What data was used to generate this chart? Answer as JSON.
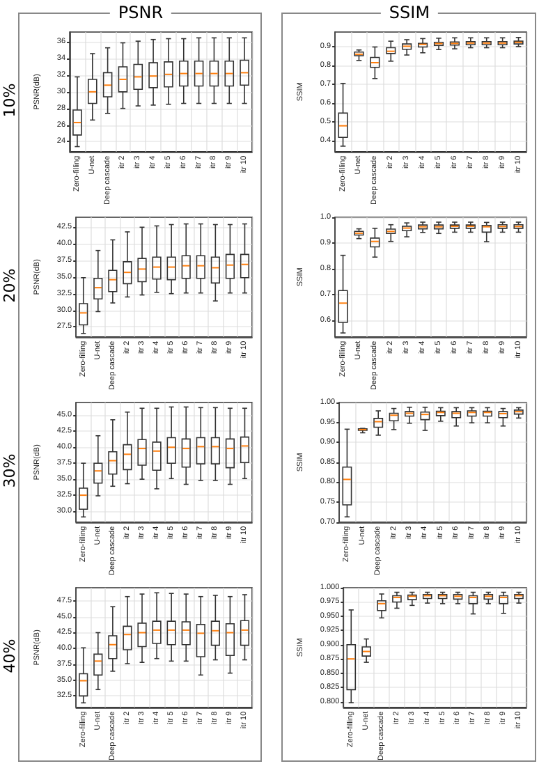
{
  "chart_data": [
    {
      "type": "box",
      "title": "PSNR",
      "annotations": [
        "10%"
      ],
      "ylabel": "PSNR(dB)",
      "categories": [
        "Zero-filling",
        "U-net",
        "Deep cascade",
        "itr 2",
        "itr 3",
        "itr 4",
        "itr 5",
        "itr 6",
        "itr 7",
        "itr 8",
        "itr 9",
        "itr 10"
      ],
      "ylim": [
        22.8,
        37.2
      ],
      "yticks": [
        24,
        26,
        28,
        30,
        32,
        34,
        36
      ],
      "grid": true,
      "series": [
        {
          "color": "#333333",
          "boxes": [
            {
              "low": 23.4,
              "q1": 24.8,
              "median": 26.3,
              "q3": 27.8,
              "high": 31.8
            },
            {
              "low": 26.6,
              "q1": 28.6,
              "median": 30.0,
              "q3": 31.5,
              "high": 34.6
            },
            {
              "low": 27.4,
              "q1": 29.4,
              "median": 30.8,
              "q3": 32.3,
              "high": 35.3
            },
            {
              "low": 28.0,
              "q1": 30.0,
              "median": 31.5,
              "q3": 33.0,
              "high": 35.9
            },
            {
              "low": 28.3,
              "q1": 30.3,
              "median": 31.8,
              "q3": 33.3,
              "high": 36.1
            },
            {
              "low": 28.4,
              "q1": 30.5,
              "median": 31.9,
              "q3": 33.5,
              "high": 36.3
            },
            {
              "low": 28.5,
              "q1": 30.6,
              "median": 32.1,
              "q3": 33.6,
              "high": 36.4
            },
            {
              "low": 28.6,
              "q1": 30.7,
              "median": 32.2,
              "q3": 33.7,
              "high": 36.4
            },
            {
              "low": 28.6,
              "q1": 30.7,
              "median": 32.2,
              "q3": 33.7,
              "high": 36.5
            },
            {
              "low": 28.6,
              "q1": 30.7,
              "median": 32.2,
              "q3": 33.7,
              "high": 36.5
            },
            {
              "low": 28.6,
              "q1": 30.7,
              "median": 32.2,
              "q3": 33.7,
              "high": 36.5
            },
            {
              "low": 28.6,
              "q1": 30.8,
              "median": 32.3,
              "q3": 33.8,
              "high": 36.5
            }
          ]
        }
      ]
    },
    {
      "type": "box",
      "title": "SSIM",
      "ylabel": "SSIM",
      "categories": [
        "Zero-filling",
        "U-net",
        "Deep cascade",
        "itr 2",
        "itr 3",
        "itr 4",
        "itr 5",
        "itr 6",
        "itr 7",
        "itr 8",
        "itr 9",
        "itr 10"
      ],
      "ylim": [
        0.34,
        0.98
      ],
      "yticks": [
        0.4,
        0.5,
        0.6,
        0.7,
        0.8,
        0.9
      ],
      "grid": true,
      "series": [
        {
          "color": "#333333",
          "boxes": [
            {
              "low": 0.369,
              "q1": 0.416,
              "median": 0.478,
              "q3": 0.546,
              "high": 0.705
            },
            {
              "low": 0.828,
              "q1": 0.853,
              "median": 0.861,
              "q3": 0.873,
              "high": 0.884
            },
            {
              "low": 0.731,
              "q1": 0.791,
              "median": 0.816,
              "q3": 0.844,
              "high": 0.9
            },
            {
              "low": 0.824,
              "q1": 0.865,
              "median": 0.877,
              "q3": 0.896,
              "high": 0.931
            },
            {
              "low": 0.857,
              "q1": 0.888,
              "median": 0.904,
              "q3": 0.916,
              "high": 0.939
            },
            {
              "low": 0.869,
              "q1": 0.9,
              "median": 0.914,
              "q3": 0.919,
              "high": 0.945
            },
            {
              "low": 0.886,
              "q1": 0.908,
              "median": 0.918,
              "q3": 0.925,
              "high": 0.947
            },
            {
              "low": 0.89,
              "q1": 0.91,
              "median": 0.919,
              "q3": 0.927,
              "high": 0.949
            },
            {
              "low": 0.896,
              "q1": 0.912,
              "median": 0.921,
              "q3": 0.929,
              "high": 0.949
            },
            {
              "low": 0.896,
              "q1": 0.912,
              "median": 0.921,
              "q3": 0.929,
              "high": 0.949
            },
            {
              "low": 0.896,
              "q1": 0.912,
              "median": 0.921,
              "q3": 0.929,
              "high": 0.949
            },
            {
              "low": 0.902,
              "q1": 0.916,
              "median": 0.925,
              "q3": 0.931,
              "high": 0.951
            }
          ]
        }
      ]
    },
    {
      "type": "box",
      "annotations": [
        "20%"
      ],
      "ylabel": "PSNR(dB)",
      "categories": [
        "Zero-filling",
        "U-net",
        "Deep cascade",
        "itr 2",
        "itr 3",
        "itr 4",
        "itr 5",
        "itr 6",
        "itr 7",
        "itr 8",
        "itr 9",
        "itr 10"
      ],
      "ylim": [
        26,
        44
      ],
      "yticks": [
        27.5,
        {
          "value": 30,
          "label": "30.0"
        },
        32.5,
        {
          "value": 35,
          "label": "35.0"
        },
        37.5,
        {
          "value": 40,
          "label": "40.0"
        },
        42.5
      ],
      "grid": true,
      "series": [
        {
          "color": "#333333",
          "boxes": [
            {
              "low": 26.5,
              "q1": 27.8,
              "median": 29.6,
              "q3": 31.0,
              "high": 34.9
            },
            {
              "low": 29.8,
              "q1": 31.7,
              "median": 33.4,
              "q3": 34.8,
              "high": 39.0
            },
            {
              "low": 31.1,
              "q1": 32.8,
              "median": 34.6,
              "q3": 36.0,
              "high": 40.6
            },
            {
              "low": 32.0,
              "q1": 34.0,
              "median": 35.7,
              "q3": 37.3,
              "high": 41.8
            },
            {
              "low": 32.3,
              "q1": 34.3,
              "median": 36.2,
              "q3": 37.8,
              "high": 42.5
            },
            {
              "low": 32.7,
              "q1": 34.7,
              "median": 36.5,
              "q3": 38.0,
              "high": 42.7
            },
            {
              "low": 32.5,
              "q1": 34.6,
              "median": 36.5,
              "q3": 38.0,
              "high": 42.9
            },
            {
              "low": 32.6,
              "q1": 34.8,
              "median": 36.7,
              "q3": 38.2,
              "high": 43.0
            },
            {
              "low": 32.6,
              "q1": 34.8,
              "median": 36.7,
              "q3": 38.2,
              "high": 43.0
            },
            {
              "low": 31.4,
              "q1": 34.1,
              "median": 36.4,
              "q3": 38.0,
              "high": 42.9
            },
            {
              "low": 32.6,
              "q1": 34.8,
              "median": 36.8,
              "q3": 38.4,
              "high": 42.9
            },
            {
              "low": 32.6,
              "q1": 34.9,
              "median": 36.9,
              "q3": 38.4,
              "high": 43.0
            }
          ]
        }
      ]
    },
    {
      "type": "box",
      "ylabel": "SSIM",
      "categories": [
        "Zero-filling",
        "U-net",
        "Deep cascade",
        "itr 2",
        "itr 3",
        "itr 4",
        "itr 5",
        "itr 6",
        "itr 7",
        "itr 8",
        "itr 9",
        "itr 10"
      ],
      "ylim": [
        0.535,
        1.0
      ],
      "yticks": [
        0.6,
        0.7,
        0.8,
        0.9,
        {
          "value": 1,
          "label": "1.0"
        }
      ],
      "grid": true,
      "series": [
        {
          "color": "#333333",
          "boxes": [
            {
              "low": 0.55,
              "q1": 0.591,
              "median": 0.666,
              "q3": 0.715,
              "high": 0.852
            },
            {
              "low": 0.917,
              "q1": 0.931,
              "median": 0.938,
              "q3": 0.945,
              "high": 0.955
            },
            {
              "low": 0.845,
              "q1": 0.885,
              "median": 0.906,
              "q3": 0.919,
              "high": 0.957
            },
            {
              "low": 0.906,
              "q1": 0.937,
              "median": 0.945,
              "q3": 0.954,
              "high": 0.971
            },
            {
              "low": 0.924,
              "q1": 0.948,
              "median": 0.958,
              "q3": 0.965,
              "high": 0.978
            },
            {
              "low": 0.941,
              "q1": 0.955,
              "median": 0.963,
              "q3": 0.97,
              "high": 0.981
            },
            {
              "low": 0.937,
              "q1": 0.955,
              "median": 0.963,
              "q3": 0.97,
              "high": 0.981
            },
            {
              "low": 0.942,
              "q1": 0.957,
              "median": 0.965,
              "q3": 0.97,
              "high": 0.981
            },
            {
              "low": 0.942,
              "q1": 0.957,
              "median": 0.965,
              "q3": 0.97,
              "high": 0.981
            },
            {
              "low": 0.905,
              "q1": 0.942,
              "median": 0.963,
              "q3": 0.968,
              "high": 0.98
            },
            {
              "low": 0.942,
              "q1": 0.957,
              "median": 0.964,
              "q3": 0.971,
              "high": 0.981
            },
            {
              "low": 0.942,
              "q1": 0.957,
              "median": 0.964,
              "q3": 0.971,
              "high": 0.981
            }
          ]
        }
      ]
    },
    {
      "type": "box",
      "annotations": [
        "30%"
      ],
      "ylabel": "PSNR(dB)",
      "categories": [
        "Zero-filling",
        "U-net",
        "Deep cascade",
        "itr 2",
        "itr 3",
        "itr 4",
        "itr 5",
        "itr 6",
        "itr 7",
        "itr 8",
        "itr 9",
        "itr 10"
      ],
      "ylim": [
        28.3,
        47
      ],
      "yticks": [
        {
          "value": 30,
          "label": "30.0"
        },
        32.5,
        {
          "value": 35,
          "label": "35.0"
        },
        37.5,
        {
          "value": 40,
          "label": "40.0"
        },
        42.5,
        {
          "value": 45,
          "label": "45.0"
        }
      ],
      "grid": true,
      "series": [
        {
          "color": "#333333",
          "boxes": [
            {
              "low": 29.1,
              "q1": 30.3,
              "median": 32.5,
              "q3": 33.6,
              "high": 37.5
            },
            {
              "low": 32.4,
              "q1": 34.4,
              "median": 36.3,
              "q3": 37.5,
              "high": 41.8
            },
            {
              "low": 33.9,
              "q1": 35.8,
              "median": 37.9,
              "q3": 39.3,
              "high": 44.3
            },
            {
              "low": 34.3,
              "q1": 36.5,
              "median": 38.9,
              "q3": 40.4,
              "high": 45.5
            },
            {
              "low": 35.0,
              "q1": 37.2,
              "median": 39.8,
              "q3": 41.2,
              "high": 46.1
            },
            {
              "low": 33.5,
              "q1": 36.4,
              "median": 39.4,
              "q3": 40.8,
              "high": 46.1
            },
            {
              "low": 35.1,
              "q1": 37.5,
              "median": 40.0,
              "q3": 41.5,
              "high": 46.3
            },
            {
              "low": 34.2,
              "q1": 36.9,
              "median": 39.8,
              "q3": 41.3,
              "high": 46.3
            },
            {
              "low": 34.8,
              "q1": 37.4,
              "median": 40.1,
              "q3": 41.5,
              "high": 46.2
            },
            {
              "low": 34.8,
              "q1": 37.4,
              "median": 40.1,
              "q3": 41.5,
              "high": 46.2
            },
            {
              "low": 34.2,
              "q1": 36.8,
              "median": 39.8,
              "q3": 41.3,
              "high": 46.1
            },
            {
              "low": 35.1,
              "q1": 37.6,
              "median": 40.2,
              "q3": 41.6,
              "high": 46.1
            }
          ]
        }
      ]
    },
    {
      "type": "box",
      "ylabel": "SSIM",
      "categories": [
        "Zero-filling",
        "U-net",
        "Deep cascade",
        "itr 2",
        "itr 3",
        "itr 4",
        "itr 5",
        "itr 6",
        "itr 7",
        "itr 8",
        "itr 9",
        "itr 10"
      ],
      "ylim": [
        0.7,
        1.0
      ],
      "yticks": [
        {
          "value": 0.7,
          "label": "0.70"
        },
        0.75,
        {
          "value": 0.8,
          "label": "0.80"
        },
        0.85,
        {
          "value": 0.9,
          "label": "0.90"
        },
        0.95,
        {
          "value": 1,
          "label": "1.00"
        }
      ],
      "grid": true,
      "series": [
        {
          "color": "#333333",
          "boxes": [
            {
              "low": 0.713,
              "q1": 0.743,
              "median": 0.807,
              "q3": 0.838,
              "high": 0.933
            },
            {
              "low": 0.924,
              "q1": 0.93,
              "median": 0.932,
              "q3": 0.934,
              "high": 0.935
            },
            {
              "low": 0.918,
              "q1": 0.938,
              "median": 0.952,
              "q3": 0.96,
              "high": 0.979
            },
            {
              "low": 0.932,
              "q1": 0.954,
              "median": 0.968,
              "q3": 0.973,
              "high": 0.985
            },
            {
              "low": 0.948,
              "q1": 0.966,
              "median": 0.973,
              "q3": 0.977,
              "high": 0.988
            },
            {
              "low": 0.93,
              "q1": 0.957,
              "median": 0.97,
              "q3": 0.976,
              "high": 0.988
            },
            {
              "low": 0.953,
              "q1": 0.967,
              "median": 0.975,
              "q3": 0.978,
              "high": 0.987
            },
            {
              "low": 0.941,
              "q1": 0.962,
              "median": 0.973,
              "q3": 0.977,
              "high": 0.987
            },
            {
              "low": 0.949,
              "q1": 0.966,
              "median": 0.975,
              "q3": 0.979,
              "high": 0.987
            },
            {
              "low": 0.949,
              "q1": 0.966,
              "median": 0.975,
              "q3": 0.978,
              "high": 0.987
            },
            {
              "low": 0.941,
              "q1": 0.962,
              "median": 0.972,
              "q3": 0.977,
              "high": 0.985
            },
            {
              "low": 0.961,
              "q1": 0.971,
              "median": 0.977,
              "q3": 0.981,
              "high": 0.987
            }
          ]
        }
      ]
    },
    {
      "type": "box",
      "annotations": [
        "40%"
      ],
      "ylabel": "PSNR(dB)",
      "categories": [
        "Zero-filling",
        "U-net",
        "Deep cascade",
        "itr 2",
        "itr 3",
        "itr 4",
        "itr 5",
        "itr 6",
        "itr 7",
        "itr 8",
        "itr 9",
        "itr 10"
      ],
      "ylim": [
        30.7,
        49.6
      ],
      "yticks": [
        32.5,
        {
          "value": 35,
          "label": "35.0"
        },
        37.5,
        {
          "value": 40,
          "label": "40.0"
        },
        42.5,
        {
          "value": 45,
          "label": "45.0"
        },
        47.5
      ],
      "grid": true,
      "series": [
        {
          "color": "#333333",
          "boxes": [
            {
              "low": 31.4,
              "q1": 32.5,
              "median": 34.9,
              "q3": 36.0,
              "high": 40.1
            },
            {
              "low": 33.5,
              "q1": 35.8,
              "median": 38.0,
              "q3": 39.1,
              "high": 42.5
            },
            {
              "low": 36.4,
              "q1": 38.4,
              "median": 40.6,
              "q3": 42.0,
              "high": 46.6
            },
            {
              "low": 37.6,
              "q1": 39.8,
              "median": 42.2,
              "q3": 43.5,
              "high": 48.2
            },
            {
              "low": 37.8,
              "q1": 40.3,
              "median": 42.5,
              "q3": 44.0,
              "high": 48.6
            },
            {
              "low": 38.4,
              "q1": 40.8,
              "median": 42.9,
              "q3": 44.3,
              "high": 48.8
            },
            {
              "low": 38.0,
              "q1": 40.6,
              "median": 42.9,
              "q3": 44.3,
              "high": 48.7
            },
            {
              "low": 38.0,
              "q1": 40.6,
              "median": 42.9,
              "q3": 44.2,
              "high": 48.6
            },
            {
              "low": 35.8,
              "q1": 38.7,
              "median": 42.4,
              "q3": 43.8,
              "high": 48.2
            },
            {
              "low": 38.2,
              "q1": 40.5,
              "median": 42.8,
              "q3": 44.3,
              "high": 48.4
            },
            {
              "low": 36.1,
              "q1": 38.9,
              "median": 42.5,
              "q3": 43.9,
              "high": 48.2
            },
            {
              "low": 38.2,
              "q1": 40.5,
              "median": 42.9,
              "q3": 44.4,
              "high": 48.5
            }
          ]
        }
      ]
    },
    {
      "type": "box",
      "ylabel": "SSIM",
      "categories": [
        "Zero-filling",
        "U-net",
        "Deep cascade",
        "itr 2",
        "itr 3",
        "itr 4",
        "itr 5",
        "itr 6",
        "itr 7",
        "itr 8",
        "itr 9",
        "itr 10"
      ],
      "ylim": [
        0.79,
        1.0
      ],
      "yticks": [
        {
          "value": 0.8,
          "label": "0.800"
        },
        0.825,
        {
          "value": 0.85,
          "label": "0.850"
        },
        0.875,
        {
          "value": 0.9,
          "label": "0.900"
        },
        0.925,
        {
          "value": 0.95,
          "label": "0.950"
        },
        0.975,
        {
          "value": 1,
          "label": "1.000"
        }
      ],
      "grid": true,
      "series": [
        {
          "color": "#333333",
          "boxes": [
            {
              "low": 0.798,
              "q1": 0.821,
              "median": 0.875,
              "q3": 0.9,
              "high": 0.961
            },
            {
              "low": 0.869,
              "q1": 0.88,
              "median": 0.888,
              "q3": 0.896,
              "high": 0.91
            },
            {
              "low": 0.947,
              "q1": 0.96,
              "median": 0.972,
              "q3": 0.977,
              "high": 0.989
            },
            {
              "low": 0.964,
              "q1": 0.975,
              "median": 0.983,
              "q3": 0.986,
              "high": 0.992
            },
            {
              "low": 0.969,
              "q1": 0.979,
              "median": 0.985,
              "q3": 0.987,
              "high": 0.992
            },
            {
              "low": 0.973,
              "q1": 0.981,
              "median": 0.986,
              "q3": 0.988,
              "high": 0.992
            },
            {
              "low": 0.972,
              "q1": 0.981,
              "median": 0.986,
              "q3": 0.988,
              "high": 0.992
            },
            {
              "low": 0.972,
              "q1": 0.98,
              "median": 0.985,
              "q3": 0.988,
              "high": 0.992
            },
            {
              "low": 0.954,
              "q1": 0.972,
              "median": 0.983,
              "q3": 0.986,
              "high": 0.992
            },
            {
              "low": 0.972,
              "q1": 0.98,
              "median": 0.985,
              "q3": 0.988,
              "high": 0.992
            },
            {
              "low": 0.955,
              "q1": 0.972,
              "median": 0.983,
              "q3": 0.986,
              "high": 0.992
            },
            {
              "low": 0.973,
              "q1": 0.981,
              "median": 0.986,
              "q3": 0.988,
              "high": 0.992
            }
          ]
        }
      ]
    }
  ]
}
